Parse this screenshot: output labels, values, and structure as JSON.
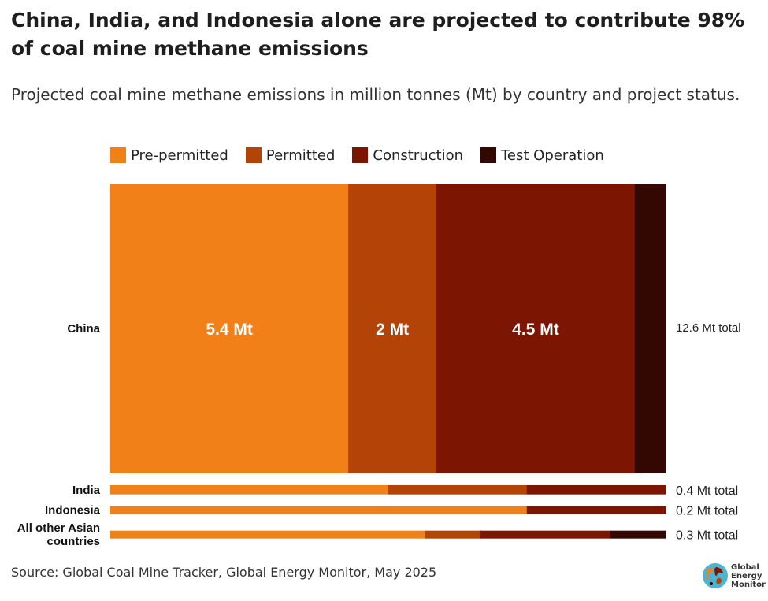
{
  "title": "China, India, and Indonesia alone are projected to contribute 98% of coal mine methane emissions",
  "subtitle": "Projected coal mine methane emissions in million tonnes (Mt) by country and project status.",
  "source": "Source: Global Coal Mine Tracker, Global Energy Monitor, May 2025",
  "logo": {
    "line1": "Global",
    "line2": "Energy",
    "line3": "Monitor"
  },
  "colors": {
    "pre_permitted": "#f28019",
    "permitted": "#b34307",
    "construction": "#7c1502",
    "test_operation": "#330702"
  },
  "chart_data": {
    "type": "bar",
    "stacked": true,
    "orientation": "horizontal",
    "title": "China, India, and Indonesia alone are projected to contribute 98% of coal mine methane emissions",
    "subtitle": "Projected coal mine methane emissions in million tonnes (Mt) by country and project status.",
    "legend_position": "top",
    "series_names": [
      "Pre-permitted",
      "Permitted",
      "Construction",
      "Test Operation"
    ],
    "series_colors": [
      "#f28019",
      "#b34307",
      "#7c1502",
      "#330702"
    ],
    "categories": [
      {
        "name": "China",
        "total": 12.6,
        "total_label": "12.6 Mt total",
        "values": [
          5.4,
          2.0,
          4.5,
          0.7
        ],
        "labels": [
          "5.4 Mt",
          "2 Mt",
          "4.5 Mt",
          ""
        ]
      },
      {
        "name": "India",
        "total": 0.4,
        "total_label": "0.4 Mt total",
        "values": [
          0.2,
          0.1,
          0.1,
          0.0
        ],
        "labels": [
          "",
          "",
          "",
          ""
        ]
      },
      {
        "name": "Indonesia",
        "total": 0.2,
        "total_label": "0.2 Mt total",
        "values": [
          0.15,
          0.0,
          0.05,
          0.0
        ],
        "labels": [
          "",
          "",
          "",
          ""
        ]
      },
      {
        "name": "All other Asian countries",
        "name_lines": [
          "All other Asian",
          "countries"
        ],
        "total": 0.3,
        "total_label": "0.3 Mt total",
        "values": [
          0.17,
          0.03,
          0.07,
          0.03
        ],
        "labels": [
          "",
          "",
          "",
          ""
        ]
      }
    ]
  }
}
